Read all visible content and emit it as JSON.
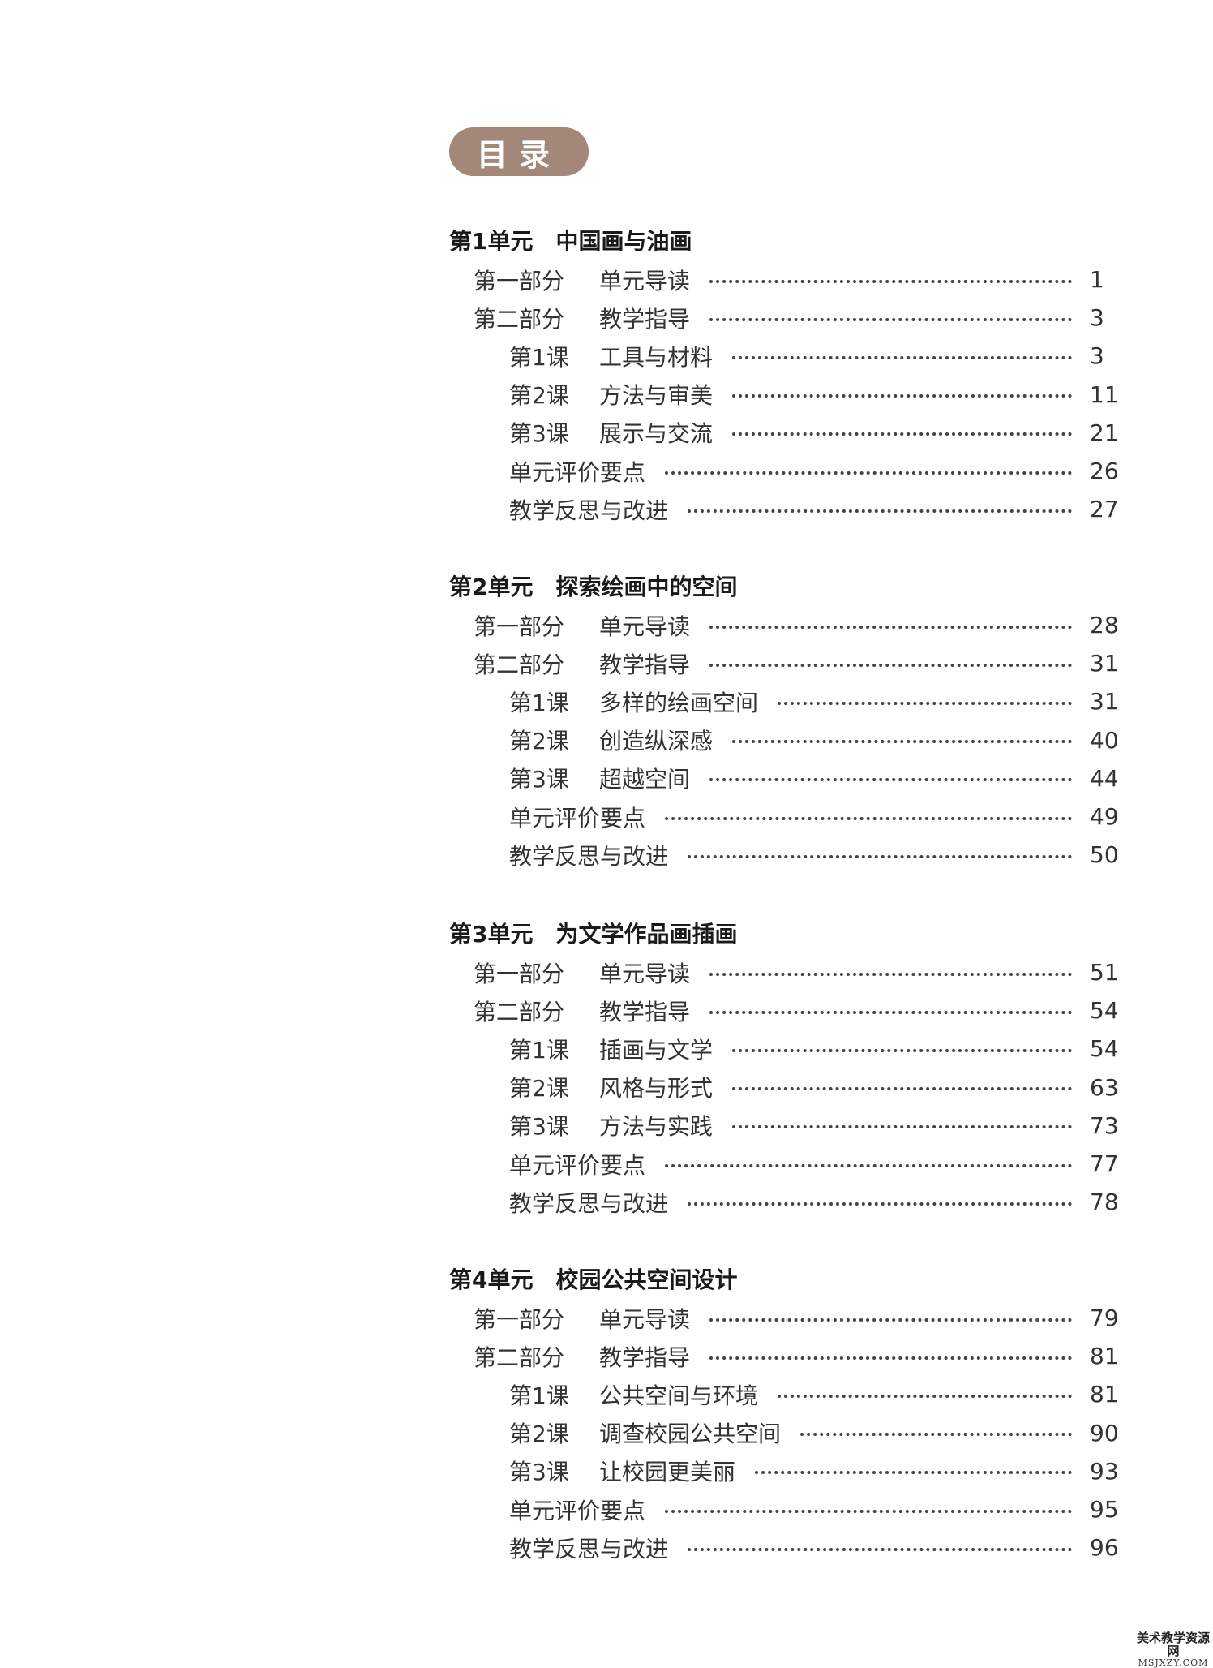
{
  "heading": "目录",
  "units": [
    {
      "title": "第1单元　中国画与油画",
      "entries": [
        {
          "level": 1,
          "num": "第一部分",
          "name": "单元导读",
          "page": "1"
        },
        {
          "level": 1,
          "num": "第二部分",
          "name": "教学指导",
          "page": "3"
        },
        {
          "level": 2,
          "num": "第1课",
          "name": "工具与材料",
          "page": "3"
        },
        {
          "level": 2,
          "num": "第2课",
          "name": "方法与审美",
          "page": "11"
        },
        {
          "level": 2,
          "num": "第3课",
          "name": "展示与交流",
          "page": "21"
        },
        {
          "level": 2,
          "num": "",
          "name": "单元评价要点",
          "page": "26"
        },
        {
          "level": 2,
          "num": "",
          "name": "教学反思与改进",
          "page": "27"
        }
      ]
    },
    {
      "title": "第2单元　探索绘画中的空间",
      "entries": [
        {
          "level": 1,
          "num": "第一部分",
          "name": "单元导读",
          "page": "28"
        },
        {
          "level": 1,
          "num": "第二部分",
          "name": "教学指导",
          "page": "31"
        },
        {
          "level": 2,
          "num": "第1课",
          "name": "多样的绘画空间",
          "page": "31"
        },
        {
          "level": 2,
          "num": "第2课",
          "name": "创造纵深感",
          "page": "40"
        },
        {
          "level": 2,
          "num": "第3课",
          "name": "超越空间",
          "page": "44"
        },
        {
          "level": 2,
          "num": "",
          "name": "单元评价要点",
          "page": "49"
        },
        {
          "level": 2,
          "num": "",
          "name": "教学反思与改进",
          "page": "50"
        }
      ]
    },
    {
      "title": "第3单元　为文学作品画插画",
      "entries": [
        {
          "level": 1,
          "num": "第一部分",
          "name": "单元导读",
          "page": "51"
        },
        {
          "level": 1,
          "num": "第二部分",
          "name": "教学指导",
          "page": "54"
        },
        {
          "level": 2,
          "num": "第1课",
          "name": "插画与文学",
          "page": "54"
        },
        {
          "level": 2,
          "num": "第2课",
          "name": "风格与形式",
          "page": "63"
        },
        {
          "level": 2,
          "num": "第3课",
          "name": "方法与实践",
          "page": "73"
        },
        {
          "level": 2,
          "num": "",
          "name": "单元评价要点",
          "page": "77"
        },
        {
          "level": 2,
          "num": "",
          "name": "教学反思与改进",
          "page": "78"
        }
      ]
    },
    {
      "title": "第4单元　校园公共空间设计",
      "entries": [
        {
          "level": 1,
          "num": "第一部分",
          "name": "单元导读",
          "page": "79"
        },
        {
          "level": 1,
          "num": "第二部分",
          "name": "教学指导",
          "page": "81"
        },
        {
          "level": 2,
          "num": "第1课",
          "name": "公共空间与环境",
          "page": "81"
        },
        {
          "level": 2,
          "num": "第2课",
          "name": "调查校园公共空间",
          "page": "90"
        },
        {
          "level": 2,
          "num": "第3课",
          "name": "让校园更美丽",
          "page": "93"
        },
        {
          "level": 2,
          "num": "",
          "name": "单元评价要点",
          "page": "95"
        },
        {
          "level": 2,
          "num": "",
          "name": "教学反思与改进",
          "page": "96"
        }
      ]
    }
  ],
  "watermark": {
    "line1": "美术教学资源网",
    "line2": "MSJXZY.COM"
  }
}
